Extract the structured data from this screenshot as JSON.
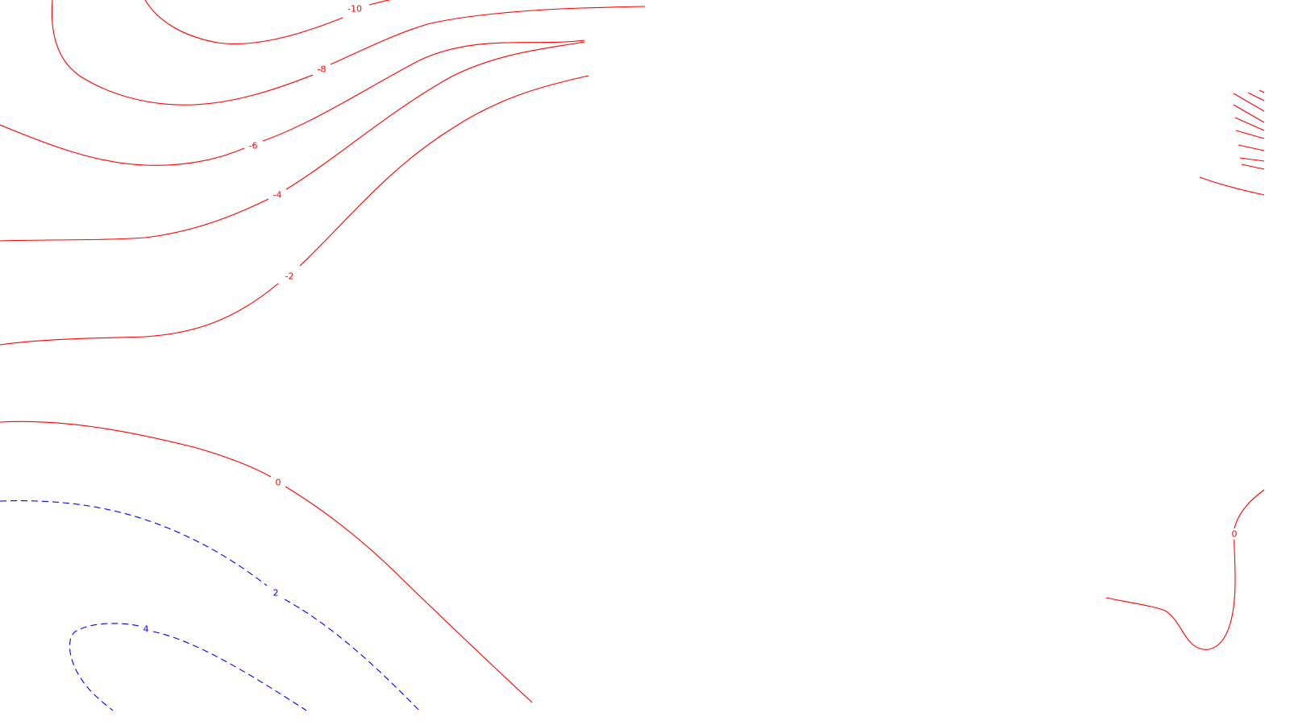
{
  "map": {
    "colors": {
      "negative": "#ff0000",
      "positive": "#0000ff",
      "background": "#ffffff"
    },
    "contours": [
      {
        "level": "-10",
        "sign": "negative"
      },
      {
        "level": "-8",
        "sign": "negative"
      },
      {
        "level": "-6",
        "sign": "negative"
      },
      {
        "level": "-4",
        "sign": "negative"
      },
      {
        "level": "-2",
        "sign": "negative"
      },
      {
        "level": "0",
        "sign": "negative"
      },
      {
        "level": "0",
        "sign": "negative"
      },
      {
        "level": "2",
        "sign": "positive"
      },
      {
        "level": "4",
        "sign": "positive"
      }
    ]
  }
}
